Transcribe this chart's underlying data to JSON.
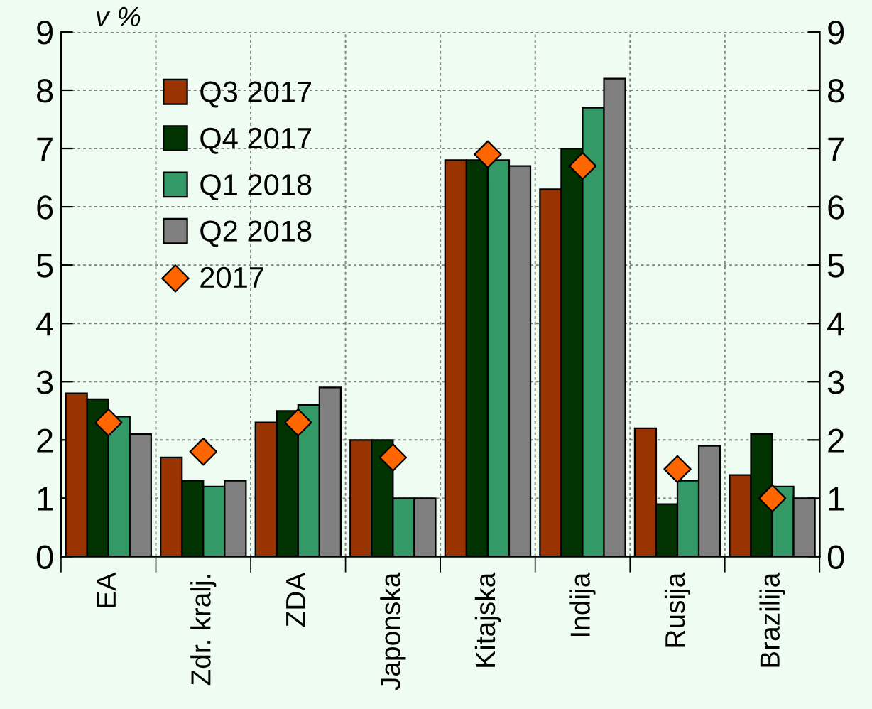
{
  "chart_data": {
    "type": "bar",
    "ylabel": "v %",
    "categories": [
      "EA",
      "Zdr. kralj.",
      "ZDA",
      "Japonska",
      "Kitajska",
      "Indija",
      "Rusija",
      "Brazilija"
    ],
    "series": [
      {
        "name": "Q3 2017",
        "color": "#993300",
        "values": [
          2.8,
          1.7,
          2.3,
          2.0,
          6.8,
          6.3,
          2.2,
          1.4
        ]
      },
      {
        "name": "Q4 2017",
        "color": "#003300",
        "values": [
          2.7,
          1.3,
          2.5,
          2.0,
          6.8,
          7.0,
          0.9,
          2.1
        ]
      },
      {
        "name": "Q1 2018",
        "color": "#339966",
        "values": [
          2.4,
          1.2,
          2.6,
          1.0,
          6.8,
          7.7,
          1.3,
          1.2
        ]
      },
      {
        "name": "Q2 2018",
        "color": "#808080",
        "values": [
          2.1,
          1.3,
          2.9,
          1.0,
          6.7,
          8.2,
          1.9,
          1.0
        ]
      },
      {
        "name": "2017",
        "type": "scatter",
        "marker": "diamond",
        "color": "#ff6600",
        "values": [
          2.3,
          1.8,
          2.3,
          1.7,
          6.9,
          6.7,
          1.5,
          1.0
        ]
      }
    ],
    "ylim": [
      0,
      9
    ],
    "yticks": [
      0,
      1,
      2,
      3,
      4,
      5,
      6,
      7,
      8,
      9
    ],
    "y2lim": [
      0,
      9
    ],
    "y2ticks": [
      0,
      1,
      2,
      3,
      4,
      5,
      6,
      7,
      8,
      9
    ],
    "grid": true,
    "legend": "top left"
  }
}
